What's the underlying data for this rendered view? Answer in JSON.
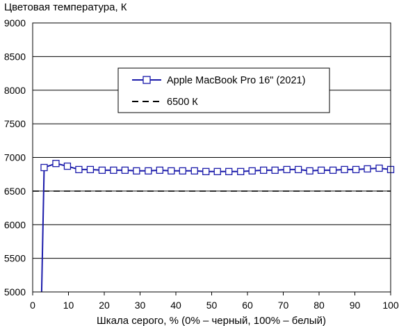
{
  "chart_data": {
    "type": "line",
    "title": "Цветовая температура, К",
    "xlabel": "Шкала серого, % (0% – черный, 100% – белый)",
    "ylabel": "",
    "xlim": [
      0,
      100
    ],
    "ylim": [
      5000,
      9000
    ],
    "xticks": [
      0,
      10,
      20,
      30,
      40,
      50,
      60,
      70,
      80,
      90,
      100
    ],
    "yticks": [
      5000,
      5500,
      6000,
      6500,
      7000,
      7500,
      8000,
      8500,
      9000
    ],
    "grid": "horizontal",
    "legend_position": "upper-center",
    "series": [
      {
        "name": "Apple MacBook Pro 16\" (2021)",
        "color": "#1a1aaa",
        "marker": "square",
        "line_style": "solid",
        "x": [
          2.5,
          3.2,
          6.5,
          9.7,
          12.9,
          16.1,
          19.4,
          22.6,
          25.8,
          29.0,
          32.3,
          35.5,
          38.7,
          41.9,
          45.2,
          48.4,
          51.6,
          54.8,
          58.1,
          61.3,
          64.5,
          67.7,
          71.0,
          74.2,
          77.4,
          80.6,
          83.9,
          87.1,
          90.3,
          93.5,
          96.8,
          100
        ],
        "y": [
          5000,
          6850,
          6910,
          6870,
          6820,
          6820,
          6810,
          6810,
          6810,
          6800,
          6800,
          6810,
          6800,
          6800,
          6800,
          6790,
          6790,
          6790,
          6790,
          6800,
          6810,
          6810,
          6820,
          6820,
          6800,
          6810,
          6810,
          6820,
          6820,
          6830,
          6840,
          6820
        ]
      },
      {
        "name": "6500 К",
        "color": "#000000",
        "line_style": "dashed",
        "x": [
          0,
          100
        ],
        "y": [
          6500,
          6500
        ]
      }
    ]
  }
}
